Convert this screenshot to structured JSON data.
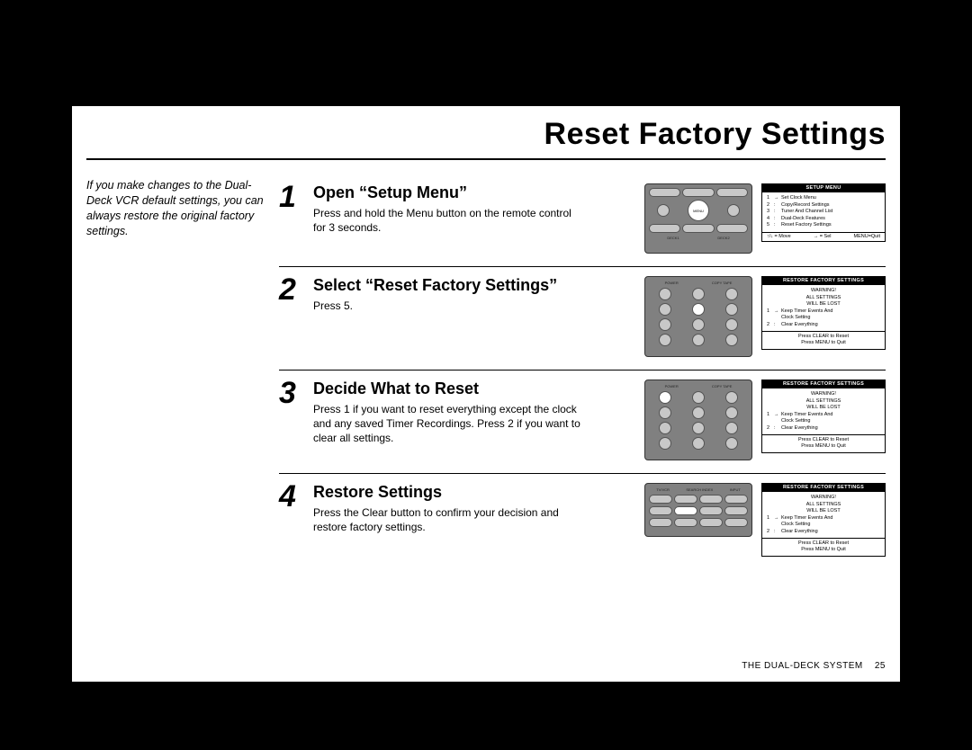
{
  "title": "Reset Factory Settings",
  "intro": "If you make changes to the Dual-Deck VCR default settings, you can always restore the original factory settings.",
  "steps": [
    {
      "num": "1",
      "title": "Open “Setup Menu”",
      "text": "Press and hold the Menu button on the remote control for 3 seconds.",
      "remote": {
        "h": "h78",
        "highlight": "menu"
      },
      "osd": {
        "header": "SETUP MENU",
        "lines": [
          [
            "1",
            "→",
            "Set Clock Menu"
          ],
          [
            "2",
            ":",
            "Copy/Record Settings"
          ],
          [
            "3",
            ":",
            "Tuner And Channel List"
          ],
          [
            "4",
            ":",
            "Dual-Deck Features"
          ],
          [
            "5",
            ":",
            "Reset Factory Settings"
          ]
        ],
        "footmode": "nav",
        "nav": [
          "↑/↓ = Move",
          "→ = Sel",
          "MENU=Quit"
        ]
      }
    },
    {
      "num": "2",
      "title": "Select “Reset Factory Settings”",
      "text": "Press 5.",
      "remote": {
        "h": "h90",
        "highlight": "5"
      },
      "osd": {
        "header": "RESTORE FACTORY SETTINGS",
        "warn": [
          "WARNING!",
          "ALL SETTINGS",
          "WILL BE LOST"
        ],
        "lines": [
          [
            "1",
            "→",
            "Keep Timer Events And"
          ],
          [
            "",
            "",
            "Clock Setting"
          ],
          [
            "2",
            ":",
            "Clear Everything"
          ]
        ],
        "footmode": "msg",
        "msg": [
          "Press CLEAR to Reset",
          "Press MENU to Quit"
        ]
      }
    },
    {
      "num": "3",
      "title": "Decide What to Reset",
      "text": "Press 1 if you want to reset everything except the clock and any saved Timer Recordings. Press 2 if you want to clear all settings.",
      "remote": {
        "h": "h90",
        "highlight": "1"
      },
      "osd": {
        "header": "RESTORE FACTORY SETTINGS",
        "warn": [
          "WARNING!",
          "ALL SETTINGS",
          "WILL BE LOST"
        ],
        "lines": [
          [
            "1",
            "→",
            "Keep Timer Events And"
          ],
          [
            "",
            "",
            "Clock Setting"
          ],
          [
            "2",
            ":",
            "Clear Everything"
          ]
        ],
        "footmode": "msg",
        "msg": [
          "Press CLEAR to Reset",
          "Press MENU to Quit"
        ]
      }
    },
    {
      "num": "4",
      "title": "Restore Settings",
      "text": "Press the Clear button to confirm your decision and restore factory settings.",
      "remote": {
        "h": "h60",
        "highlight": "clear"
      },
      "osd": {
        "header": "RESTORE FACTORY SETTINGS",
        "warn": [
          "WARNING!",
          "ALL SETTINGS",
          "WILL BE LOST"
        ],
        "lines": [
          [
            "1",
            "→",
            "Keep Timer Events And"
          ],
          [
            "",
            "",
            "Clock Setting"
          ],
          [
            "2",
            ":",
            "Clear Everything"
          ]
        ],
        "footmode": "msg",
        "msg": [
          "Press CLEAR to Reset",
          "Press MENU to Quit"
        ]
      }
    }
  ],
  "footer": {
    "label": "THE DUAL-DECK SYSTEM",
    "page": "25"
  }
}
